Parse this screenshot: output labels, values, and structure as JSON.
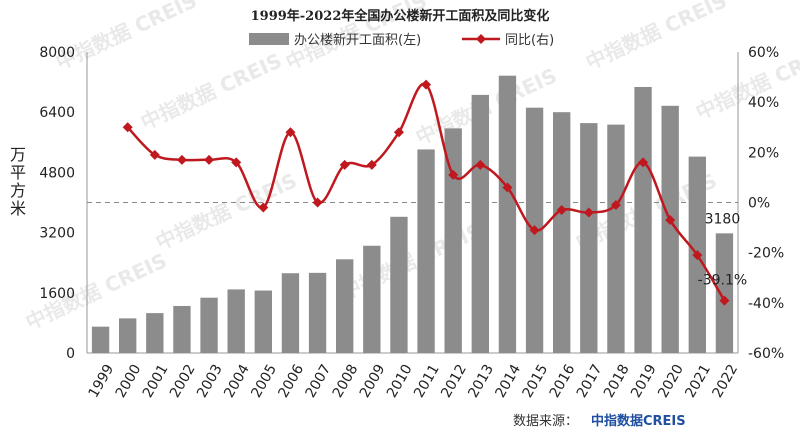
{
  "chart_data": {
    "type": "bar+line",
    "title": "1999年-2022年全国办公楼新开工面积及同比变化",
    "categories": [
      "1999",
      "2000",
      "2001",
      "2002",
      "2003",
      "2004",
      "2005",
      "2006",
      "2007",
      "2008",
      "2009",
      "2010",
      "2011",
      "2012",
      "2013",
      "2014",
      "2015",
      "2016",
      "2017",
      "2018",
      "2019",
      "2020",
      "2021",
      "2022"
    ],
    "series": [
      {
        "name": "办公楼新开工面积(左)",
        "type": "bar",
        "axis": "left",
        "color": "#8c8c8c",
        "values": [
          700,
          920,
          1060,
          1250,
          1470,
          1690,
          1660,
          2120,
          2130,
          2490,
          2850,
          3620,
          5410,
          5970,
          6860,
          7370,
          6520,
          6400,
          6110,
          6070,
          7070,
          6570,
          5220,
          3180
        ]
      },
      {
        "name": "同比(右)",
        "type": "line",
        "axis": "right",
        "color": "#c0181f",
        "values": [
          null,
          30,
          19,
          17,
          17,
          16,
          -2,
          28,
          0,
          15,
          15,
          28,
          47,
          11,
          15,
          6,
          -11,
          -3,
          -4,
          -1,
          16,
          -7,
          -21,
          -39.1
        ]
      }
    ],
    "y_left": {
      "label": "万平方米",
      "ticks": [
        "0",
        "1600",
        "3200",
        "4800",
        "6400",
        "8000"
      ],
      "lim": [
        0,
        8000
      ]
    },
    "y_right": {
      "ticks": [
        "-60%",
        "-40%",
        "-20%",
        "0%",
        "20%",
        "40%",
        "60%"
      ],
      "lim": [
        -60,
        60
      ]
    },
    "annotations": [
      {
        "text": "3180",
        "series": 0,
        "index": 23
      },
      {
        "text": "-39.1%",
        "series": 1,
        "index": 23
      }
    ],
    "legend_position": "top",
    "zero_reference_line": "dashed"
  },
  "source_label": "数据来源：",
  "source_brand": "中指数据CREIS",
  "watermark": "中指数据 CREIS"
}
